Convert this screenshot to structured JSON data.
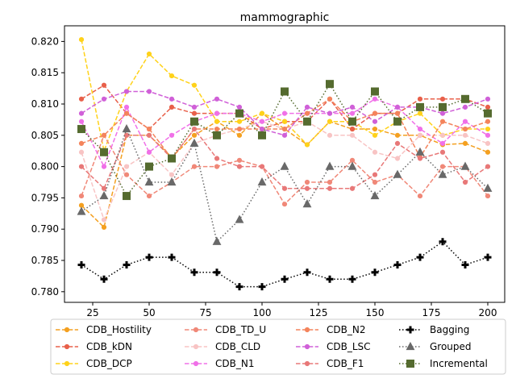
{
  "chart_data": {
    "type": "line",
    "title": "mammographic",
    "xlabel": "",
    "ylabel": "",
    "x": [
      20,
      30,
      40,
      50,
      60,
      70,
      80,
      90,
      100,
      110,
      120,
      130,
      140,
      150,
      160,
      170,
      180,
      190,
      200
    ],
    "xlim": [
      12.5,
      207.5
    ],
    "ylim": [
      0.7783,
      0.8225
    ],
    "xticks": [
      25,
      50,
      75,
      100,
      125,
      150,
      175,
      200
    ],
    "yticks": [
      0.78,
      0.785,
      0.79,
      0.795,
      0.8,
      0.805,
      0.81,
      0.815,
      0.82
    ],
    "ytick_labels": [
      "0.780",
      "0.785",
      "0.790",
      "0.795",
      "0.800",
      "0.805",
      "0.810",
      "0.815",
      "0.820"
    ],
    "legend_position": "bottom, outside plot, 4 columns",
    "series": [
      {
        "name": "CDB_Hostility",
        "color": "#f4a020",
        "linestyle": "dashed",
        "marker": "circle",
        "values": [
          0.7938,
          0.7903,
          0.805,
          0.805,
          0.8015,
          0.805,
          0.8072,
          0.805,
          0.8085,
          0.806,
          0.8035,
          0.8072,
          0.806,
          0.806,
          0.805,
          0.805,
          0.8035,
          0.8037,
          0.8023
        ]
      },
      {
        "name": "CDB_kDN",
        "color": "#e8604a",
        "linestyle": "dashed",
        "marker": "circle",
        "values": [
          0.8108,
          0.813,
          0.8085,
          0.806,
          0.8095,
          0.8085,
          0.8085,
          0.8085,
          0.806,
          0.8072,
          0.8072,
          0.8108,
          0.806,
          0.8085,
          0.8085,
          0.8108,
          0.8108,
          0.8108,
          0.8095
        ]
      },
      {
        "name": "CDB_DCP",
        "color": "#ffd21a",
        "linestyle": "dashed",
        "marker": "circle",
        "values": [
          0.8203,
          0.8025,
          0.812,
          0.818,
          0.8145,
          0.813,
          0.8072,
          0.8072,
          0.8085,
          0.8072,
          0.8035,
          0.8072,
          0.8072,
          0.805,
          0.8072,
          0.8085,
          0.805,
          0.806,
          0.806
        ]
      },
      {
        "name": "CDB_TD_U",
        "color": "#f08878",
        "linestyle": "dashed",
        "marker": "circle",
        "values": [
          0.7953,
          0.805,
          0.7987,
          0.7953,
          0.7975,
          0.8,
          0.8,
          0.801,
          0.8,
          0.794,
          0.7975,
          0.7975,
          0.801,
          0.7975,
          0.7987,
          0.7953,
          0.8,
          0.8,
          0.7953
        ]
      },
      {
        "name": "CDB_CLD",
        "color": "#f8c4c4",
        "linestyle": "dashed",
        "marker": "circle",
        "values": [
          0.8023,
          0.7915,
          0.8,
          0.8023,
          0.7987,
          0.8037,
          0.805,
          0.806,
          0.8072,
          0.806,
          0.8072,
          0.805,
          0.805,
          0.8023,
          0.8013,
          0.805,
          0.805,
          0.805,
          0.8037
        ]
      },
      {
        "name": "CDB_N1",
        "color": "#f070e8",
        "linestyle": "dashed",
        "marker": "circle",
        "values": [
          0.8072,
          0.8,
          0.8095,
          0.8023,
          0.805,
          0.8072,
          0.8085,
          0.8085,
          0.8072,
          0.8085,
          0.8085,
          0.8085,
          0.8085,
          0.8108,
          0.8095,
          0.806,
          0.8037,
          0.8072,
          0.805
        ]
      },
      {
        "name": "CDB_N2",
        "color": "#f4845c",
        "linestyle": "dashed",
        "marker": "circle",
        "values": [
          0.8037,
          0.805,
          0.8085,
          0.806,
          0.8013,
          0.806,
          0.806,
          0.806,
          0.806,
          0.806,
          0.8085,
          0.8108,
          0.8072,
          0.8085,
          0.8085,
          0.8015,
          0.8072,
          0.806,
          0.8072
        ]
      },
      {
        "name": "CDB_LSC",
        "color": "#d060d8",
        "linestyle": "dashed",
        "marker": "circle",
        "values": [
          0.8085,
          0.8108,
          0.812,
          0.812,
          0.8108,
          0.8095,
          0.8108,
          0.8095,
          0.806,
          0.805,
          0.8095,
          0.8085,
          0.8095,
          0.8072,
          0.8095,
          0.8095,
          0.8085,
          0.8095,
          0.8108
        ]
      },
      {
        "name": "CDB_F1",
        "color": "#e87878",
        "linestyle": "dashed",
        "marker": "circle",
        "values": [
          0.8,
          0.7965,
          0.805,
          0.805,
          0.8013,
          0.806,
          0.8013,
          0.8,
          0.8,
          0.7965,
          0.7965,
          0.7965,
          0.7965,
          0.7987,
          0.8037,
          0.8013,
          0.8023,
          0.7975,
          0.8
        ]
      },
      {
        "name": "Bagging",
        "color": "#000000",
        "linestyle": "dotted",
        "marker": "plus",
        "values": [
          0.7843,
          0.782,
          0.7843,
          0.7855,
          0.7855,
          0.7831,
          0.7831,
          0.7808,
          0.7808,
          0.782,
          0.7831,
          0.782,
          0.782,
          0.7831,
          0.7843,
          0.7855,
          0.788,
          0.7843,
          0.7855
        ]
      },
      {
        "name": "Grouped",
        "color": "#696969",
        "linestyle": "dotted",
        "marker": "triangle",
        "values": [
          0.7928,
          0.7953,
          0.806,
          0.7975,
          0.7975,
          0.8037,
          0.788,
          0.7915,
          0.7975,
          0.8,
          0.794,
          0.8,
          0.8,
          0.7953,
          0.7987,
          0.8023,
          0.7987,
          0.8,
          0.7965
        ]
      },
      {
        "name": "Incremental",
        "color": "#556b2f",
        "linestyle": "dotted",
        "marker": "square",
        "values": [
          0.806,
          0.8023,
          0.7953,
          0.8,
          0.8013,
          0.8072,
          0.805,
          0.8085,
          0.805,
          0.812,
          0.8072,
          0.8132,
          0.8072,
          0.812,
          0.8072,
          0.8095,
          0.8095,
          0.8108,
          0.8085
        ]
      }
    ]
  }
}
